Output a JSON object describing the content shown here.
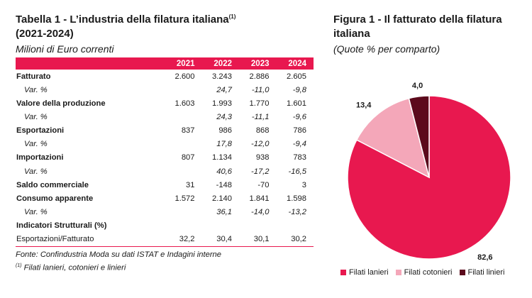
{
  "table": {
    "title": "Tabella 1 - L’industria della filatura italiana",
    "title_sup": "(1)",
    "title_line2": "(2021-2024)",
    "subtitle": "Milioni di Euro correnti",
    "headers": [
      "",
      "2021",
      "2022",
      "2023",
      "2024"
    ],
    "rows": [
      {
        "label": "Fatturato",
        "values": [
          "2.600",
          "3.243",
          "2.886",
          "2.605"
        ]
      },
      {
        "label": "Var. %",
        "values": [
          "",
          "24,7",
          "-11,0",
          "-9,8"
        ]
      },
      {
        "label": "Valore della produzione",
        "values": [
          "1.603",
          "1.993",
          "1.770",
          "1.601"
        ]
      },
      {
        "label": "Var. %",
        "values": [
          "",
          "24,3",
          "-11,1",
          "-9,6"
        ]
      },
      {
        "label": "Esportazioni",
        "values": [
          "837",
          "986",
          "868",
          "786"
        ]
      },
      {
        "label": "Var. %",
        "values": [
          "",
          "17,8",
          "-12,0",
          "-9,4"
        ]
      },
      {
        "label": "Importazioni",
        "values": [
          "807",
          "1.134",
          "938",
          "783"
        ]
      },
      {
        "label": "Var. %",
        "values": [
          "",
          "40,6",
          "-17,2",
          "-16,5"
        ]
      },
      {
        "label": "Saldo commerciale",
        "values": [
          "31",
          "-148",
          "-70",
          "3"
        ]
      },
      {
        "label": "Consumo apparente",
        "values": [
          "1.572",
          "2.140",
          "1.841",
          "1.598"
        ]
      },
      {
        "label": "Var. %",
        "values": [
          "",
          "36,1",
          "-14,0",
          "-13,2"
        ]
      },
      {
        "label": "Indicatori Strutturali (%)",
        "values": [
          "",
          "",
          "",
          ""
        ]
      },
      {
        "label": "Esportazioni/Fatturato",
        "values": [
          "32,2",
          "30,4",
          "30,1",
          "30,2"
        ]
      }
    ],
    "source": "Fonte: Confindustria Moda su dati ISTAT e Indagini interne",
    "footnote_mark": "(1)",
    "footnote": "Filati lanieri, cotonieri e linieri"
  },
  "figure": {
    "title": "Figura 1 - Il fatturato della filatura italiana",
    "subtitle": "(Quote % per comparto)"
  },
  "chart_data": {
    "type": "pie",
    "title": "Figura 1 - Il fatturato della filatura italiana",
    "subtitle": "(Quote % per comparto)",
    "slices": [
      {
        "name": "Filati lanieri",
        "value": 82.6,
        "label": "82,6",
        "color": "#e8184f"
      },
      {
        "name": "Filati cotonieri",
        "value": 13.4,
        "label": "13,4",
        "color": "#f4a7b9"
      },
      {
        "name": "Filati linieri",
        "value": 4.0,
        "label": "4,0",
        "color": "#5c0a1c"
      }
    ],
    "legend_position": "bottom"
  },
  "colors": {
    "accent": "#e8184f"
  }
}
